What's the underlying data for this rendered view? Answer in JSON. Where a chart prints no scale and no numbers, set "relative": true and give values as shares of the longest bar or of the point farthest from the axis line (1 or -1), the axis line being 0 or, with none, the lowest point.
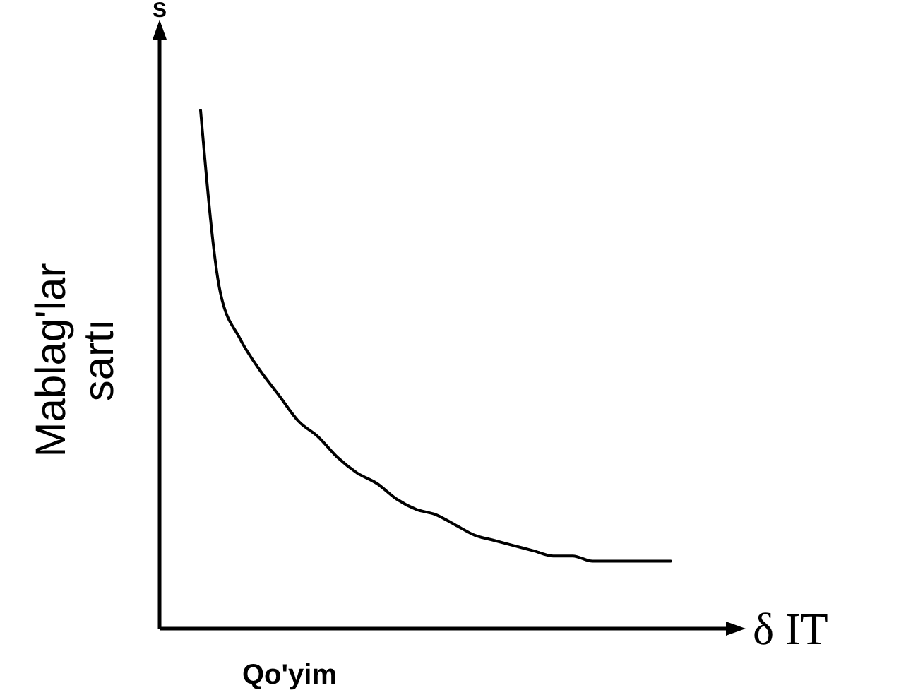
{
  "chart_data": {
    "type": "line",
    "xlabel": "Qo'yim",
    "ylabel": "Mablag'lar sartı",
    "annotations": [
      "S",
      "δ IT"
    ],
    "relative": true,
    "marker": "none",
    "categories": [
      null,
      null,
      null,
      null,
      null,
      null,
      null,
      null,
      null,
      null,
      null,
      null,
      null,
      null,
      null,
      null,
      null,
      null,
      null,
      null,
      null,
      null,
      null,
      null,
      null
    ],
    "series": [
      {
        "color": "#000000",
        "values": [
          1,
          0.65,
          0.56,
          0.5,
          0.45,
          0.4,
          0.37,
          0.33,
          0.3,
          0.28,
          0.25,
          0.23,
          0.22,
          0.2,
          0.18,
          0.17,
          0.16,
          0.15,
          0.14,
          0.14,
          0.13,
          0.13,
          0.13,
          0.13,
          0.13
        ]
      }
    ]
  }
}
